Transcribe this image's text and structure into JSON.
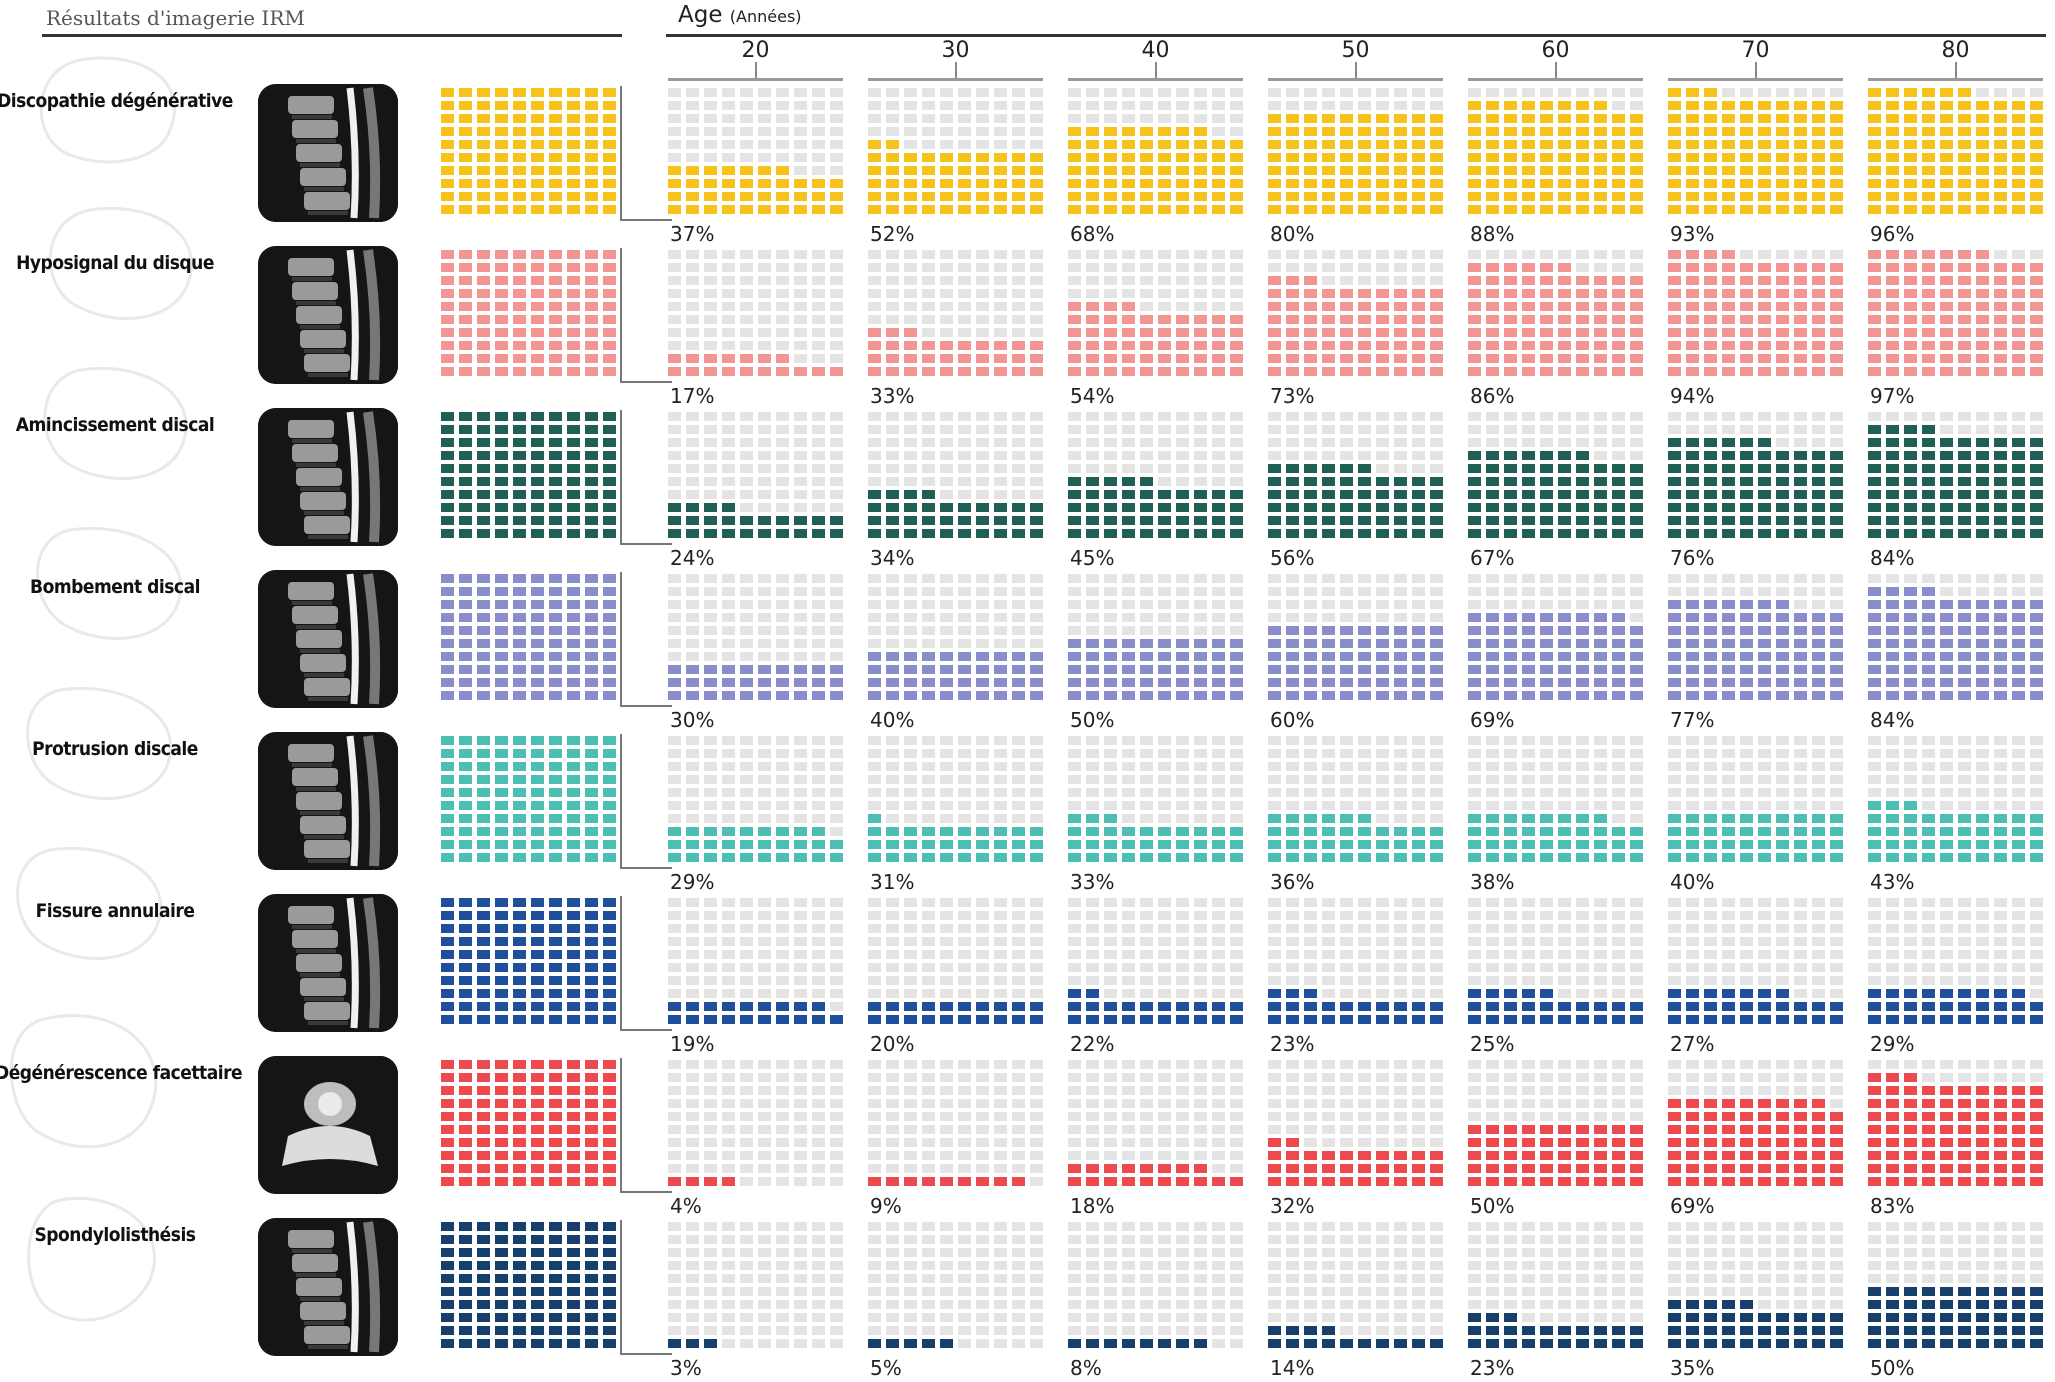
{
  "header": {
    "title": "Résultats d'imagerie IRM"
  },
  "age_axis": {
    "label": "Age",
    "unit": "(Années)"
  },
  "colors": {
    "empty": "#e4e4e4"
  },
  "chart_data": {
    "type": "waffle",
    "categories": [
      "20",
      "30",
      "40",
      "50",
      "60",
      "70",
      "80"
    ],
    "series": [
      {
        "name": "Discopathie dégénérative",
        "color": "#f7c31b",
        "values": [
          37,
          52,
          68,
          80,
          88,
          93,
          96
        ],
        "labels": [
          "37%",
          "52%",
          "68%",
          "80%",
          "88%",
          "93%",
          "96%"
        ]
      },
      {
        "name": "Hyposignal du disque",
        "color": "#f29593",
        "values": [
          17,
          33,
          54,
          73,
          86,
          94,
          97
        ],
        "labels": [
          "17%",
          "33%",
          "54%",
          "73%",
          "86%",
          "94%",
          "97%"
        ]
      },
      {
        "name": "Amincissement discal",
        "color": "#1f5f56",
        "values": [
          24,
          34,
          45,
          56,
          67,
          76,
          84
        ],
        "labels": [
          "24%",
          "34%",
          "45%",
          "56%",
          "67%",
          "76%",
          "84%"
        ]
      },
      {
        "name": "Bombement discal",
        "color": "#8a8dcb",
        "values": [
          30,
          40,
          50,
          60,
          69,
          77,
          84
        ],
        "labels": [
          "30%",
          "40%",
          "50%",
          "60%",
          "69%",
          "77%",
          "84%"
        ]
      },
      {
        "name": "Protrusion discale",
        "color": "#4cbfb5",
        "values": [
          29,
          31,
          33,
          36,
          38,
          40,
          43
        ],
        "labels": [
          "29%",
          "31%",
          "33%",
          "36%",
          "38%",
          "40%",
          "43%"
        ]
      },
      {
        "name": "Fissure annulaire",
        "color": "#1f4f9a",
        "values": [
          19,
          20,
          22,
          23,
          25,
          27,
          29
        ],
        "labels": [
          "19%",
          "20%",
          "22%",
          "23%",
          "25%",
          "27%",
          "29%"
        ]
      },
      {
        "name": "Dégénérescence facettaire",
        "color": "#ee4a4e",
        "values": [
          4,
          9,
          18,
          32,
          50,
          69,
          83
        ],
        "labels": [
          "4%",
          "9%",
          "18%",
          "32%",
          "50%",
          "69%",
          "83%"
        ]
      },
      {
        "name": "Spondylolisthésis",
        "color": "#173f6b",
        "values": [
          3,
          5,
          8,
          14,
          23,
          35,
          50
        ],
        "labels": [
          "3%",
          "5%",
          "8%",
          "14%",
          "23%",
          "35%",
          "50%"
        ]
      }
    ]
  }
}
